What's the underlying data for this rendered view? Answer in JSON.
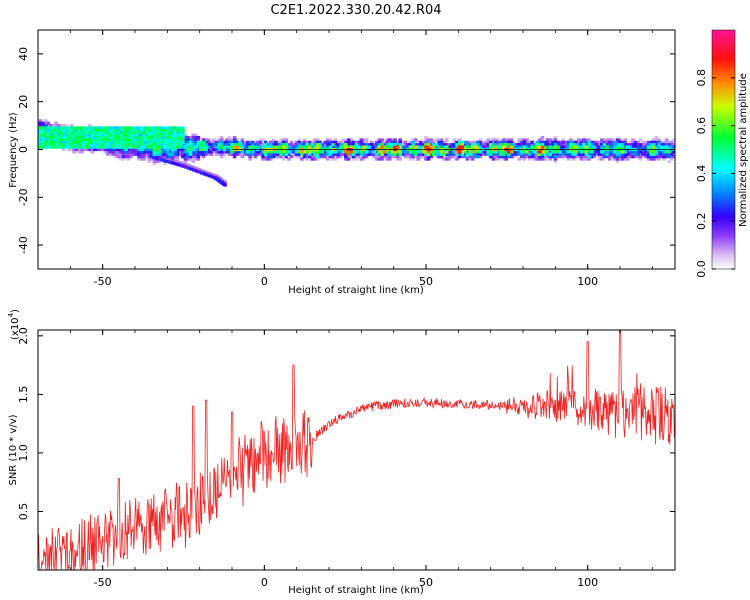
{
  "figure": {
    "title": "C2E1.2022.330.20.42.R04"
  },
  "chart_data": [
    {
      "type": "heatmap",
      "title": "C2E1.2022.330.20.42.R04",
      "xlabel": "Height of straight line (km)",
      "ylabel": "Frequency (Hz)",
      "xlim": [
        -70,
        127
      ],
      "ylim": [
        -50,
        50
      ],
      "xticks": [
        -50,
        0,
        50,
        100
      ],
      "yticks": [
        -40,
        -20,
        0,
        20,
        40
      ],
      "xtick_labels": [
        "-50",
        "0",
        "50",
        "100"
      ],
      "ytick_labels": [
        "-40",
        "-20",
        "0",
        "20",
        "40"
      ],
      "colorbar": {
        "label": "Normalized spectral amplitude",
        "range": [
          0.0,
          1.0
        ],
        "ticks": [
          0.0,
          0.2,
          0.4,
          0.6,
          0.8
        ],
        "tick_labels": [
          "0.0",
          "0.2",
          "0.4",
          "0.6",
          "0.8"
        ],
        "colormap": [
          "#ffffff",
          "#9b59d6",
          "#5500ff",
          "#0066ff",
          "#00ffff",
          "#00ff44",
          "#ffff00",
          "#ff6a00",
          "#ff0033",
          "#ff1493"
        ]
      },
      "dominant_ridge": {
        "description_points": [
          {
            "x": -70,
            "frequency": 7,
            "amplitude": 0.45
          },
          {
            "x": -60,
            "frequency": 5,
            "amplitude": 0.5
          },
          {
            "x": -50,
            "frequency": 3,
            "amplitude": 0.45
          },
          {
            "x": -40,
            "frequency": 1,
            "amplitude": 0.5
          },
          {
            "x": -30,
            "frequency": 0,
            "amplitude": 0.55
          },
          {
            "x": -20,
            "frequency": 1,
            "amplitude": 0.6
          },
          {
            "x": -10,
            "frequency": 1,
            "amplitude": 0.7
          },
          {
            "x": 0,
            "frequency": 0,
            "amplitude": 0.8
          },
          {
            "x": 20,
            "frequency": 0,
            "amplitude": 0.85
          },
          {
            "x": 40,
            "frequency": 0,
            "amplitude": 0.9
          },
          {
            "x": 60,
            "frequency": 0,
            "amplitude": 0.95
          },
          {
            "x": 80,
            "frequency": 0,
            "amplitude": 0.85
          },
          {
            "x": 100,
            "frequency": 0,
            "amplitude": 0.7
          },
          {
            "x": 120,
            "frequency": 0,
            "amplitude": 0.6
          }
        ],
        "secondary_branch": [
          {
            "x": -35,
            "frequency": -3
          },
          {
            "x": -25,
            "frequency": -7
          },
          {
            "x": -15,
            "frequency": -12
          },
          {
            "x": -12,
            "frequency": -15
          }
        ]
      }
    },
    {
      "type": "line",
      "xlabel": "Height of straight line (km)",
      "ylabel": "SNR (10 * v/v)",
      "y_multiplier_label": "(x10",
      "y_multiplier_exp": "4",
      "y_multiplier_close": ")",
      "xlim": [
        -70,
        127
      ],
      "ylim": [
        0,
        2.05
      ],
      "xticks": [
        -50,
        0,
        50,
        100
      ],
      "yticks": [
        0.5,
        1.0,
        1.5,
        2.0
      ],
      "xtick_labels": [
        "-50",
        "0",
        "50",
        "100"
      ],
      "ytick_labels": [
        "0.5",
        "1.0",
        "1.5",
        "2.0"
      ],
      "series": [
        {
          "color": "#ee2222",
          "trend": [
            {
              "x": -70,
              "y": 0.05
            },
            {
              "x": -60,
              "y": 0.1
            },
            {
              "x": -50,
              "y": 0.25
            },
            {
              "x": -40,
              "y": 0.35
            },
            {
              "x": -30,
              "y": 0.45
            },
            {
              "x": -20,
              "y": 0.55
            },
            {
              "x": -12,
              "y": 0.75
            },
            {
              "x": -5,
              "y": 0.9
            },
            {
              "x": 0,
              "y": 1.0
            },
            {
              "x": 10,
              "y": 1.0
            },
            {
              "x": 20,
              "y": 1.25
            },
            {
              "x": 30,
              "y": 1.38
            },
            {
              "x": 40,
              "y": 1.42
            },
            {
              "x": 50,
              "y": 1.43
            },
            {
              "x": 60,
              "y": 1.42
            },
            {
              "x": 70,
              "y": 1.41
            },
            {
              "x": 80,
              "y": 1.4
            },
            {
              "x": 90,
              "y": 1.4
            },
            {
              "x": 100,
              "y": 1.38
            },
            {
              "x": 110,
              "y": 1.33
            },
            {
              "x": 127,
              "y": 1.3
            }
          ],
          "peaks": [
            {
              "x": -45,
              "y": 0.78
            },
            {
              "x": -22,
              "y": 1.4
            },
            {
              "x": -18,
              "y": 1.45
            },
            {
              "x": -10,
              "y": 1.35
            },
            {
              "x": 9,
              "y": 1.75
            },
            {
              "x": 100,
              "y": 1.95
            },
            {
              "x": 110,
              "y": 2.05
            }
          ]
        }
      ]
    }
  ]
}
